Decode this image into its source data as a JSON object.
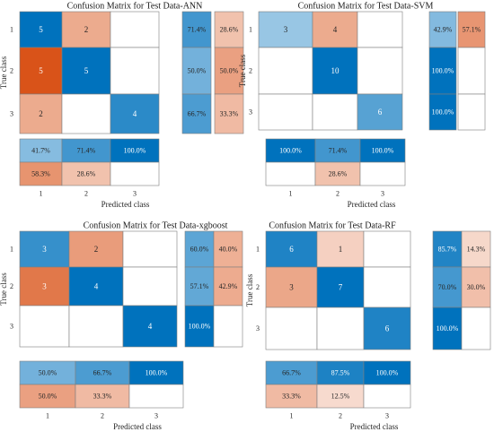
{
  "chart_data": [
    {
      "type": "heatmap",
      "title": "Confusion Matrix for Test Data-ANN",
      "xlabel": "Predicted class",
      "ylabel": "True class",
      "classes": [
        "1",
        "2",
        "3"
      ],
      "matrix": [
        [
          5,
          2,
          0
        ],
        [
          5,
          5,
          0
        ],
        [
          2,
          0,
          4
        ]
      ],
      "row_summary": [
        [
          "71.4%",
          "28.6%"
        ],
        [
          "50.0%",
          "50.0%"
        ],
        [
          "66.7%",
          "33.3%"
        ]
      ],
      "col_summary": [
        [
          "41.7%",
          "71.4%",
          "100.0%"
        ],
        [
          "58.3%",
          "28.6%",
          ""
        ]
      ]
    },
    {
      "type": "heatmap",
      "title": "Confusion Matrix for Test Data-SVM",
      "xlabel": "Predicted class",
      "ylabel": "True class",
      "classes": [
        "1",
        "2",
        "3"
      ],
      "matrix": [
        [
          3,
          4,
          0
        ],
        [
          0,
          10,
          0
        ],
        [
          0,
          0,
          6
        ]
      ],
      "row_summary": [
        [
          "42.9%",
          "57.1%"
        ],
        [
          "100.0%",
          ""
        ],
        [
          "100.0%",
          ""
        ]
      ],
      "col_summary": [
        [
          "100.0%",
          "71.4%",
          "100.0%"
        ],
        [
          "",
          "28.6%",
          ""
        ]
      ]
    },
    {
      "type": "heatmap",
      "title": "Confusion Matrix for Test Data-xgboost",
      "xlabel": "Predicted class",
      "ylabel": "True class",
      "classes": [
        "1",
        "2",
        "3"
      ],
      "matrix": [
        [
          3,
          2,
          0
        ],
        [
          3,
          4,
          0
        ],
        [
          0,
          0,
          4
        ]
      ],
      "row_summary": [
        [
          "60.0%",
          "40.0%"
        ],
        [
          "57.1%",
          "42.9%"
        ],
        [
          "100.0%",
          ""
        ]
      ],
      "col_summary": [
        [
          "50.0%",
          "66.7%",
          "100.0%"
        ],
        [
          "50.0%",
          "33.3%",
          ""
        ]
      ]
    },
    {
      "type": "heatmap",
      "title": "Confusion Matrix for Test Data-RF",
      "xlabel": "Predicted class",
      "ylabel": "True class",
      "classes": [
        "1",
        "2",
        "3"
      ],
      "matrix": [
        [
          6,
          1,
          0
        ],
        [
          3,
          7,
          0
        ],
        [
          0,
          0,
          6
        ]
      ],
      "row_summary": [
        [
          "85.7%",
          "14.3%"
        ],
        [
          "70.0%",
          "30.0%"
        ],
        [
          "100.0%",
          ""
        ]
      ],
      "col_summary": [
        [
          "66.7%",
          "87.5%",
          "100.0%"
        ],
        [
          "33.3%",
          "12.5%",
          ""
        ]
      ]
    }
  ],
  "colors": {
    "correct": "#0072bd",
    "incorrect": "#d95319",
    "white": "#ffffff",
    "border": "#7f7f7f"
  }
}
